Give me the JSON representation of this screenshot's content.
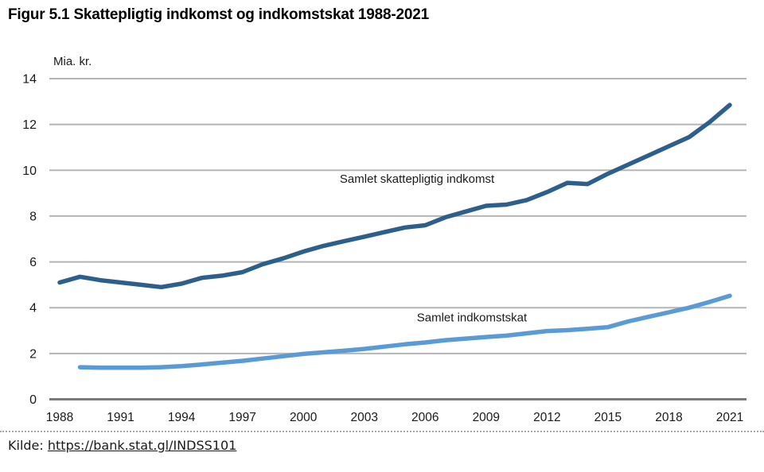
{
  "figure": {
    "title": "Figur 5.1 Skattepligtig indkomst og indkomstskat 1988-2021",
    "source_label": "Kilde:",
    "source_url": "https://bank.stat.gl/INDSS101"
  },
  "chart_data": {
    "type": "line",
    "title": "Figur 5.1 Skattepligtig indkomst og indkomstskat 1988-2021",
    "unit_label": "Mia. kr.",
    "xlabel": "",
    "ylabel": "Mia. kr.",
    "ylim": [
      0,
      14
    ],
    "y_ticks": [
      0,
      2,
      4,
      6,
      8,
      10,
      12,
      14
    ],
    "x_range": [
      1988,
      2021
    ],
    "x_tick_years": [
      1988,
      1991,
      1994,
      1997,
      2000,
      2003,
      2006,
      2009,
      2012,
      2015,
      2018,
      2021
    ],
    "grid": "horizontal-only",
    "legend_position": "inline-labels",
    "grid_color": "#b5b5b5",
    "zero_line_color": "#7a7a7a",
    "series": [
      {
        "name": "Samlet skattepligtig indkomst",
        "color": "#2d5f8c",
        "start_year": 1988,
        "values": [
          5.1,
          5.35,
          5.2,
          5.1,
          5.0,
          4.9,
          5.05,
          5.3,
          5.4,
          5.55,
          5.9,
          6.15,
          6.45,
          6.7,
          6.9,
          7.1,
          7.3,
          7.5,
          7.6,
          7.95,
          8.2,
          8.45,
          8.5,
          8.7,
          9.05,
          9.45,
          9.4,
          9.85,
          10.25,
          10.65,
          11.05,
          11.45,
          12.1,
          12.85
        ],
        "label_anchor": {
          "year": 2005.6,
          "value": 9.45
        }
      },
      {
        "name": "Samlet indkomstskat",
        "color": "#5b9bd5",
        "start_year": 1989,
        "values": [
          1.4,
          1.38,
          1.38,
          1.38,
          1.4,
          1.45,
          1.52,
          1.6,
          1.68,
          1.78,
          1.88,
          1.98,
          2.05,
          2.12,
          2.2,
          2.3,
          2.4,
          2.48,
          2.58,
          2.65,
          2.72,
          2.78,
          2.88,
          2.98,
          3.02,
          3.08,
          3.15,
          3.4,
          3.6,
          3.8,
          4.0,
          4.25,
          4.52
        ],
        "label_anchor": {
          "year": 2008.3,
          "value": 3.4
        }
      }
    ]
  }
}
